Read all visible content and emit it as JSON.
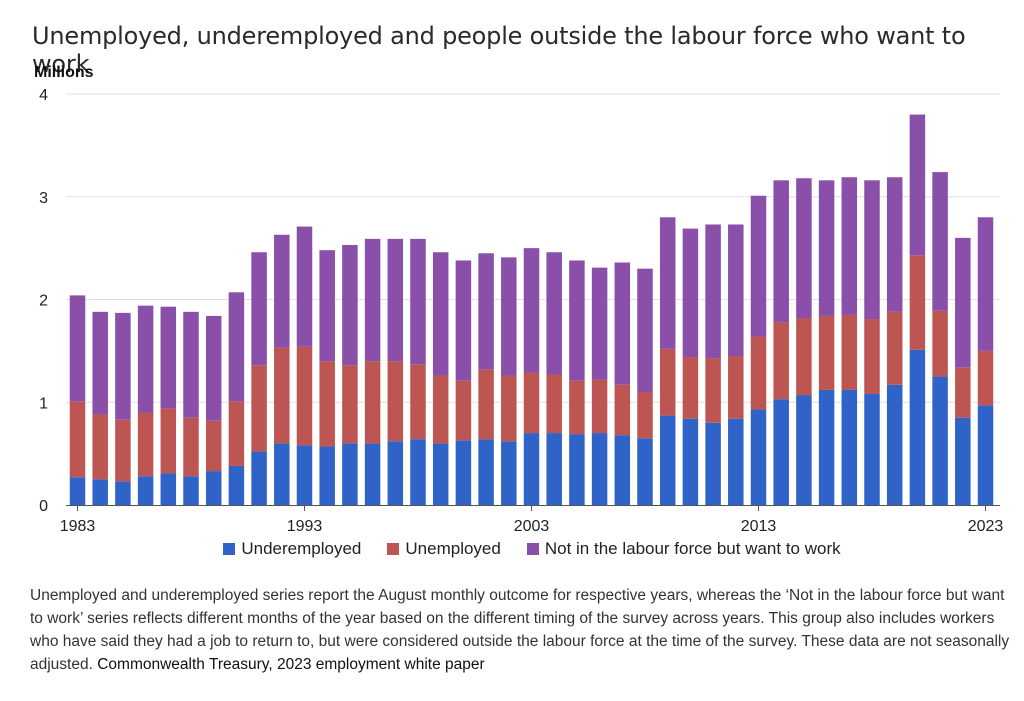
{
  "title": "Unemployed, underemployed and people outside the labour force who want to work",
  "units": "Millions",
  "note": "Unemployed and underemployed series report the August monthly outcome for respective years, whereas the ‘Not in the labour force but want to work’ series reflects different months of the year based on the different timing of the survey across years. This group also includes workers who have said they had a job to return to, but were considered outside the labour force at the time of the survey. These data are not seasonally adjusted.",
  "source": "Commonwealth Treasury, 2023 employment white paper",
  "colors": {
    "underemployed": "#2f63c8",
    "unemployed": "#bd5652",
    "nilf": "#8a4fa8"
  },
  "chart_data": {
    "type": "bar",
    "stacked": true,
    "ylim": [
      0,
      4
    ],
    "yticks": [
      0,
      1,
      2,
      3,
      4
    ],
    "xtick_labels": [
      "1983",
      "1993",
      "2003",
      "2013",
      "2023"
    ],
    "grid": true,
    "legend_position": "bottom",
    "categories": [
      "1983",
      "1984",
      "1985",
      "1986",
      "1987",
      "1988",
      "1989",
      "1990",
      "1991",
      "1992",
      "1993",
      "1994",
      "1995",
      "1996",
      "1997",
      "1998",
      "1999",
      "2000",
      "2001",
      "2002",
      "2003",
      "2004",
      "2005",
      "2006",
      "2007",
      "2008",
      "2009",
      "2010",
      "2011",
      "2012",
      "2013",
      "2014",
      "2015",
      "2016",
      "2017",
      "2018",
      "2019",
      "2020",
      "2021",
      "2022",
      "2023"
    ],
    "series": [
      {
        "name": "Underemployed",
        "values": [
          0.27,
          0.25,
          0.23,
          0.28,
          0.31,
          0.28,
          0.33,
          0.38,
          0.52,
          0.6,
          0.58,
          0.57,
          0.6,
          0.6,
          0.62,
          0.64,
          0.6,
          0.63,
          0.64,
          0.62,
          0.7,
          0.7,
          0.69,
          0.7,
          0.68,
          0.65,
          0.87,
          0.84,
          0.8,
          0.84,
          0.93,
          1.03,
          1.07,
          1.12,
          1.12,
          1.08,
          1.17,
          1.51,
          1.25,
          0.85,
          0.97
        ]
      },
      {
        "name": "Unemployed",
        "values": [
          0.74,
          0.63,
          0.6,
          0.62,
          0.63,
          0.57,
          0.49,
          0.63,
          0.84,
          0.93,
          0.96,
          0.83,
          0.76,
          0.8,
          0.78,
          0.73,
          0.66,
          0.58,
          0.68,
          0.64,
          0.59,
          0.57,
          0.52,
          0.52,
          0.49,
          0.45,
          0.65,
          0.6,
          0.63,
          0.61,
          0.71,
          0.75,
          0.75,
          0.72,
          0.73,
          0.73,
          0.71,
          0.92,
          0.64,
          0.49,
          0.53
        ]
      },
      {
        "name": "Not in the labour force but want to work",
        "values": [
          1.03,
          1.0,
          1.04,
          1.04,
          0.99,
          1.03,
          1.02,
          1.06,
          1.1,
          1.1,
          1.17,
          1.08,
          1.17,
          1.19,
          1.19,
          1.22,
          1.2,
          1.17,
          1.13,
          1.15,
          1.21,
          1.19,
          1.17,
          1.09,
          1.19,
          1.2,
          1.28,
          1.25,
          1.3,
          1.28,
          1.37,
          1.38,
          1.36,
          1.32,
          1.34,
          1.35,
          1.31,
          1.37,
          1.35,
          1.26,
          1.3
        ]
      }
    ]
  }
}
